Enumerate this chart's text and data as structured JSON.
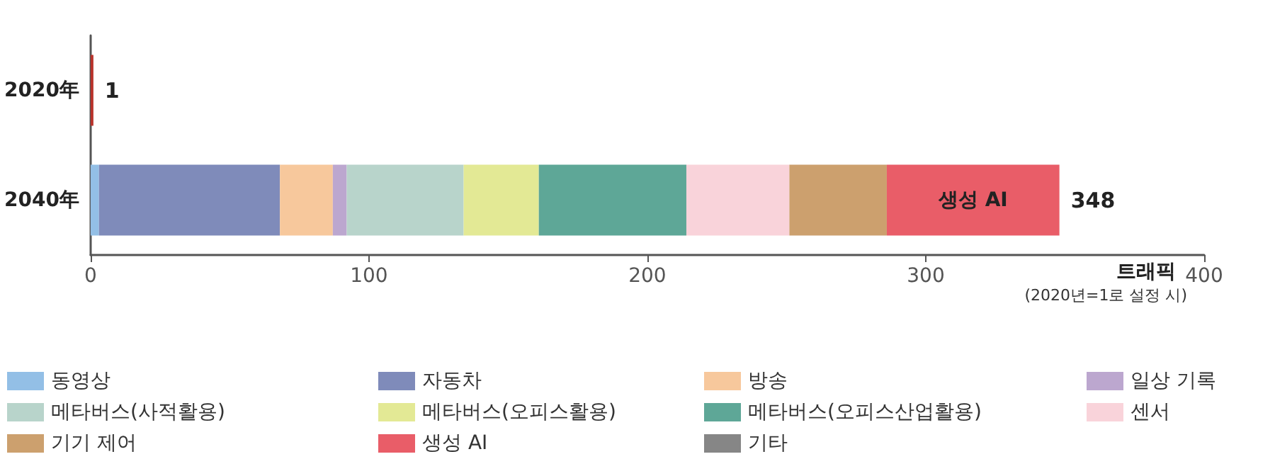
{
  "chart_data": {
    "type": "bar",
    "orientation": "horizontal",
    "stacked": true,
    "categories": [
      "2020年",
      "2040年"
    ],
    "xlabel": "트래픽",
    "xlim": [
      0,
      400
    ],
    "xticks": [
      0,
      100,
      200,
      300,
      400
    ],
    "grid": false,
    "legend": "bottom",
    "series": [
      {
        "color": "#b8332b",
        "values": [
          1,
          null
        ]
      },
      {
        "name": "동영상",
        "color": "#93bfe6",
        "values": [
          null,
          3
        ]
      },
      {
        "name": "자동차",
        "color": "#7f8bba",
        "values": [
          null,
          65
        ]
      },
      {
        "name": "방송",
        "color": "#f7c89c",
        "values": [
          null,
          19
        ]
      },
      {
        "name": "일상 기록",
        "color": "#bca7cf",
        "values": [
          null,
          5
        ]
      },
      {
        "name": "메타버스(사적활용)",
        "color": "#b8d4cb",
        "values": [
          null,
          42
        ]
      },
      {
        "name": "메타버스(오피스활용)",
        "color": "#e3e995",
        "values": [
          null,
          27
        ]
      },
      {
        "name": "메타버스(오피스산업활용)",
        "color": "#5ea797",
        "values": [
          null,
          53
        ]
      },
      {
        "name": "센서",
        "color": "#f9d3da",
        "values": [
          null,
          37
        ]
      },
      {
        "name": "기기 제어",
        "color": "#cca06e",
        "values": [
          null,
          35
        ]
      },
      {
        "name": "생성 AI",
        "color": "#e95d68",
        "values": [
          null,
          62
        ],
        "value_labels": [
          null,
          "생성 AI"
        ]
      },
      {
        "name": "기타",
        "color": "#868686",
        "values": [
          null,
          0
        ]
      }
    ],
    "totals": [
      "1",
      "348"
    ],
    "annotations": [
      "(2020년=1로 설정 시)"
    ]
  }
}
